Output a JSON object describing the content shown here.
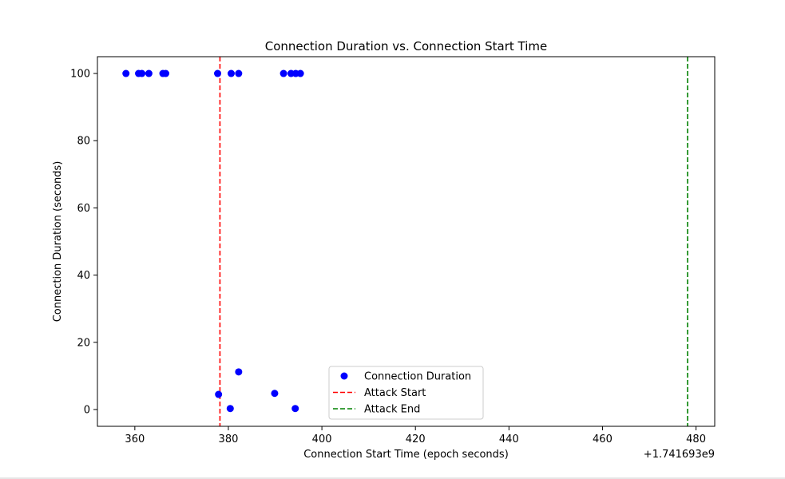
{
  "chart_data": {
    "type": "scatter",
    "title": "Connection Duration vs. Connection Start Time",
    "xlabel": "Connection Start Time (epoch seconds)",
    "ylabel": "Connection Duration (seconds)",
    "x_offset_label": "+1.741693e9",
    "xlim": [
      352,
      484
    ],
    "ylim": [
      -5,
      105
    ],
    "xticks": [
      360,
      380,
      400,
      420,
      440,
      460,
      480
    ],
    "yticks": [
      0,
      20,
      40,
      60,
      80,
      100
    ],
    "grid": false,
    "legend_position": "bottom-center",
    "series": [
      {
        "name": "Connection Duration",
        "kind": "points",
        "color": "#0000ff",
        "x": [
          358.1,
          360.8,
          361.5,
          363.0,
          366.0,
          366.6,
          377.7,
          380.6,
          382.2,
          391.8,
          393.4,
          394.4,
          395.4,
          377.9,
          380.4,
          382.2,
          389.9,
          394.3
        ],
        "y": [
          100,
          100,
          100,
          100,
          100,
          100,
          100,
          100,
          100,
          100,
          100,
          100,
          100,
          4.5,
          0.3,
          11.2,
          4.8,
          0.3
        ]
      },
      {
        "name": "Attack Start",
        "kind": "vline",
        "color": "#ff0000",
        "x": 378.2
      },
      {
        "name": "Attack End",
        "kind": "vline",
        "color": "#008000",
        "x": 478.2
      }
    ]
  }
}
